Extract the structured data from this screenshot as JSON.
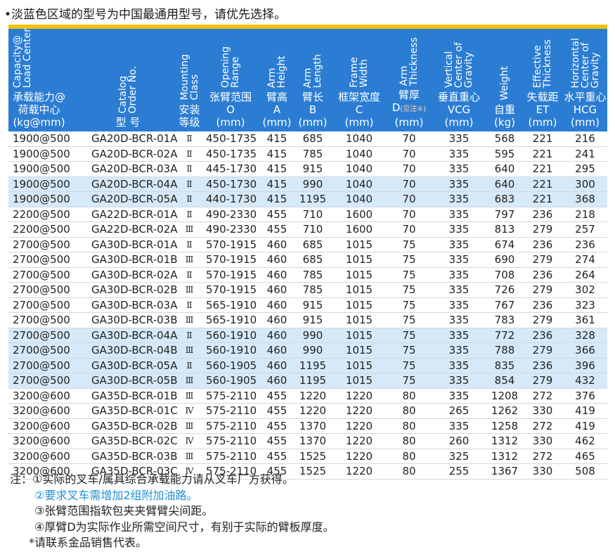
{
  "top_note": "•淡蓝色区域的型号为中国最通用型号，请优先选择。",
  "colors": {
    "header_bg": "#2b7dd3",
    "highlight_row": "#d6e9f8",
    "accent_bar": "#f2c200",
    "note_blue": "#1f8fd6"
  },
  "columns": [
    {
      "en": "Capacity@\nLoad Center",
      "zh": "承载能力@\n荷载中心\n(kg@mm)"
    },
    {
      "en": "Catalog\nOrder No.",
      "zh": "型 号"
    },
    {
      "en": "Mounting\nClass",
      "zh": "安装\n等级"
    },
    {
      "en": "Opening\nRange",
      "zh": "张臂范围\nO\n(mm)"
    },
    {
      "en": "Arm\nHeight",
      "zh": "臂高\nA\n(mm)"
    },
    {
      "en": "Arm\nLength",
      "zh": "臂长\nB\n(mm)"
    },
    {
      "en": "Frame\nWidth",
      "zh": "框架宽度\nC\n(mm)"
    },
    {
      "en": "Arm\nThickness",
      "zh_pre": "臂厚\nD",
      "zh_sub": "(见注④)",
      "zh_post": "(mm)"
    },
    {
      "en": "Vertical\nCenter of\nGravity",
      "zh": "垂直重心\nVCG\n(mm)"
    },
    {
      "en": "Weight",
      "zh": "自重\n(kg)"
    },
    {
      "en": "Effective\nThickness",
      "zh": "失载距\nET\n(mm)"
    },
    {
      "en": "Horizontal\nCenter of\nGravity",
      "zh": "水平重心\nHCG\n(mm)"
    }
  ],
  "rows": [
    {
      "hl": false,
      "cells": [
        "1900@500",
        "GA20D-BCR-01A",
        "Ⅱ",
        "450-1735",
        "415",
        "685",
        "1040",
        "70",
        "335",
        "568",
        "221",
        "216"
      ]
    },
    {
      "hl": false,
      "cells": [
        "1900@500",
        "GA20D-BCR-02A",
        "Ⅱ",
        "450-1735",
        "415",
        "785",
        "1040",
        "70",
        "335",
        "595",
        "221",
        "241"
      ]
    },
    {
      "hl": false,
      "cells": [
        "1900@500",
        "GA20D-BCR-03A",
        "Ⅱ",
        "445-1730",
        "415",
        "915",
        "1040",
        "70",
        "335",
        "640",
        "221",
        "295"
      ]
    },
    {
      "hl": true,
      "cells": [
        "1900@500",
        "GA20D-BCR-04A",
        "Ⅱ",
        "450-1730",
        "415",
        "990",
        "1040",
        "70",
        "335",
        "640",
        "221",
        "300"
      ]
    },
    {
      "hl": true,
      "cells": [
        "1900@500",
        "GA20D-BCR-05A",
        "Ⅱ",
        "440-1730",
        "415",
        "1195",
        "1040",
        "70",
        "335",
        "683",
        "221",
        "368"
      ]
    },
    {
      "hl": false,
      "cells": [
        "2200@500",
        "GA22D-BCR-01A",
        "Ⅱ",
        "490-2330",
        "455",
        "710",
        "1600",
        "70",
        "335",
        "797",
        "236",
        "218"
      ]
    },
    {
      "hl": false,
      "cells": [
        "2200@500",
        "GA22D-BCR-02A",
        "Ⅲ",
        "490-2330",
        "455",
        "710",
        "1600",
        "70",
        "335",
        "813",
        "279",
        "257"
      ]
    },
    {
      "hl": false,
      "cells": [
        "2700@500",
        "GA30D-BCR-01A",
        "Ⅱ",
        "570-1915",
        "460",
        "685",
        "1015",
        "75",
        "335",
        "674",
        "236",
        "236"
      ]
    },
    {
      "hl": false,
      "cells": [
        "2700@500",
        "GA30D-BCR-01B",
        "Ⅲ",
        "570-1915",
        "460",
        "685",
        "1015",
        "75",
        "335",
        "690",
        "279",
        "274"
      ]
    },
    {
      "hl": false,
      "cells": [
        "2700@500",
        "GA30D-BCR-02A",
        "Ⅱ",
        "570-1915",
        "460",
        "785",
        "1015",
        "75",
        "335",
        "708",
        "236",
        "264"
      ]
    },
    {
      "hl": false,
      "cells": [
        "2700@500",
        "GA30D-BCR-02B",
        "Ⅲ",
        "570-1915",
        "460",
        "785",
        "1015",
        "75",
        "335",
        "726",
        "279",
        "302"
      ]
    },
    {
      "hl": false,
      "cells": [
        "2700@500",
        "GA30D-BCR-03A",
        "Ⅱ",
        "565-1910",
        "460",
        "915",
        "1015",
        "75",
        "335",
        "767",
        "236",
        "323"
      ]
    },
    {
      "hl": false,
      "cells": [
        "2700@500",
        "GA30D-BCR-03B",
        "Ⅲ",
        "565-1910",
        "460",
        "915",
        "1015",
        "75",
        "335",
        "783",
        "279",
        "361"
      ]
    },
    {
      "hl": true,
      "cells": [
        "2700@500",
        "GA30D-BCR-04A",
        "Ⅱ",
        "560-1910",
        "460",
        "990",
        "1015",
        "75",
        "335",
        "772",
        "236",
        "328"
      ]
    },
    {
      "hl": true,
      "cells": [
        "2700@500",
        "GA30D-BCR-04B",
        "Ⅲ",
        "560-1910",
        "460",
        "990",
        "1015",
        "75",
        "335",
        "788",
        "279",
        "366"
      ]
    },
    {
      "hl": true,
      "cells": [
        "2700@500",
        "GA30D-BCR-05A",
        "Ⅱ",
        "560-1905",
        "460",
        "1195",
        "1015",
        "75",
        "335",
        "835",
        "236",
        "396"
      ]
    },
    {
      "hl": true,
      "cells": [
        "2700@500",
        "GA30D-BCR-05B",
        "Ⅲ",
        "560-1905",
        "460",
        "1195",
        "1015",
        "75",
        "335",
        "854",
        "279",
        "432"
      ]
    },
    {
      "hl": false,
      "cells": [
        "3200@600",
        "GA35D-BCR-01B",
        "Ⅲ",
        "575-2110",
        "455",
        "1220",
        "1220",
        "80",
        "335",
        "1208",
        "272",
        "376"
      ]
    },
    {
      "hl": false,
      "cells": [
        "3200@600",
        "GA35D-BCR-01C",
        "Ⅳ",
        "575-2110",
        "455",
        "1220",
        "1220",
        "80",
        "265",
        "1262",
        "330",
        "419"
      ]
    },
    {
      "hl": false,
      "cells": [
        "3200@600",
        "GA35D-BCR-02B",
        "Ⅲ",
        "575-2110",
        "455",
        "1370",
        "1220",
        "80",
        "335",
        "1258",
        "272",
        "419"
      ]
    },
    {
      "hl": false,
      "cells": [
        "3200@600",
        "GA35D-BCR-02C",
        "Ⅳ",
        "575-2110",
        "455",
        "1370",
        "1220",
        "80",
        "260",
        "1312",
        "330",
        "462"
      ]
    },
    {
      "hl": false,
      "cells": [
        "3200@600",
        "GA35D-BCR-03B",
        "Ⅲ",
        "575-2110",
        "455",
        "1525",
        "1220",
        "80",
        "325",
        "1312",
        "272",
        "465"
      ]
    },
    {
      "hl": false,
      "cells": [
        "3200@600",
        "GA35D-BCR-03C",
        "Ⅳ",
        "575-2110",
        "455",
        "1525",
        "1220",
        "80",
        "255",
        "1367",
        "330",
        "508"
      ]
    }
  ],
  "notes": {
    "prefix": "注：",
    "items": [
      "①实际的叉车/属具综合承载能力请从叉车厂方获得。",
      "②要求叉车需增加2组附加油路。",
      "③张臂范围指软包夹夹臂臂尖间距。",
      "④厚臂D为实际作业所需空间尺寸，有别于实际的臂板厚度。"
    ],
    "contact": "*请联系金品销售代表。"
  }
}
